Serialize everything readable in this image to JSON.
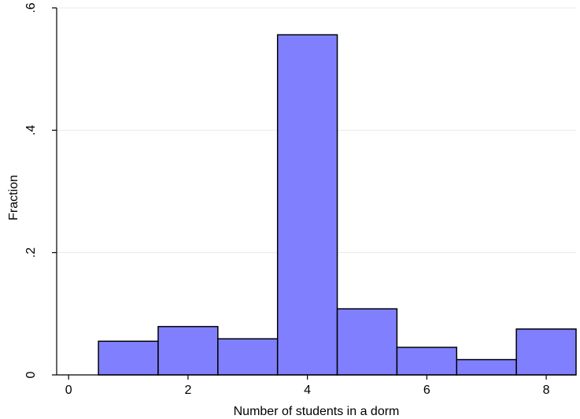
{
  "chart_data": {
    "type": "bar",
    "subtype": "histogram",
    "xlabel": "Number of students in a dorm",
    "ylabel": "Fraction",
    "xlim": [
      -0.2,
      8.5
    ],
    "ylim": [
      0,
      0.6
    ],
    "xticks": [
      0,
      2,
      4,
      6,
      8
    ],
    "xtick_labels": [
      "0",
      "2",
      "4",
      "6",
      "8"
    ],
    "yticks": [
      0,
      0.2,
      0.4,
      0.6
    ],
    "ytick_labels": [
      "0",
      ".2",
      ".4",
      ".6"
    ],
    "bin_width": 1,
    "bins": [
      {
        "center": 1,
        "value": 0.055
      },
      {
        "center": 2,
        "value": 0.079
      },
      {
        "center": 3,
        "value": 0.059
      },
      {
        "center": 4,
        "value": 0.556
      },
      {
        "center": 5,
        "value": 0.108
      },
      {
        "center": 6,
        "value": 0.045
      },
      {
        "center": 7,
        "value": 0.025
      },
      {
        "center": 8,
        "value": 0.075
      }
    ],
    "grid": true,
    "bar_color": "#8080ff",
    "bar_edge_color": "#000000",
    "grid_color": "#eaeaea",
    "axis_color": "#000000"
  }
}
